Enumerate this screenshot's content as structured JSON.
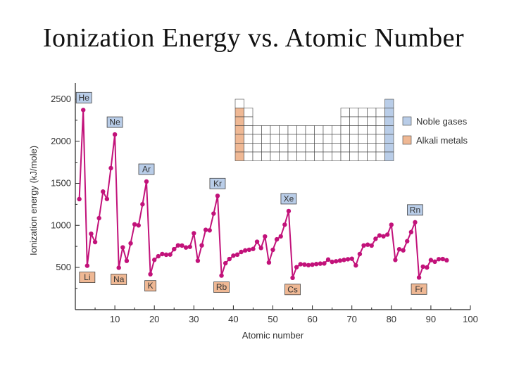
{
  "slide": {
    "title": "Ionization Energy vs. Atomic Number"
  },
  "colors": {
    "line": "#c2127a",
    "noble_fill": "#b9cde8",
    "alkali_fill": "#efb894",
    "label_border": "#444444"
  },
  "chart_data": {
    "type": "line",
    "title": "",
    "xlabel": "Atomic number",
    "ylabel": "Ionization energy (kJ/mole)",
    "xlim": [
      0,
      100
    ],
    "ylim": [
      0,
      2600
    ],
    "xticks": [
      10,
      20,
      30,
      40,
      50,
      60,
      70,
      80,
      90,
      100
    ],
    "yticks": [
      500,
      1000,
      1500,
      2000,
      2500
    ],
    "grid": false,
    "x": [
      1,
      2,
      3,
      4,
      5,
      6,
      7,
      8,
      9,
      10,
      11,
      12,
      13,
      14,
      15,
      16,
      17,
      18,
      19,
      20,
      21,
      22,
      23,
      24,
      25,
      26,
      27,
      28,
      29,
      30,
      31,
      32,
      33,
      34,
      35,
      36,
      37,
      38,
      39,
      40,
      41,
      42,
      43,
      44,
      45,
      46,
      47,
      48,
      49,
      50,
      51,
      52,
      53,
      54,
      55,
      56,
      57,
      58,
      59,
      60,
      61,
      62,
      63,
      64,
      65,
      66,
      67,
      68,
      69,
      70,
      71,
      72,
      73,
      74,
      75,
      76,
      77,
      78,
      79,
      80,
      81,
      82,
      83,
      84,
      85,
      86,
      87,
      88,
      89,
      90,
      91,
      92,
      93,
      94
    ],
    "y": [
      1312,
      2372,
      520,
      900,
      801,
      1086,
      1402,
      1314,
      1681,
      2081,
      496,
      738,
      578,
      787,
      1012,
      1000,
      1251,
      1521,
      419,
      590,
      633,
      659,
      651,
      653,
      717,
      762,
      760,
      737,
      745,
      906,
      579,
      762,
      947,
      941,
      1140,
      1351,
      403,
      550,
      600,
      640,
      652,
      684,
      702,
      710,
      720,
      805,
      731,
      868,
      558,
      709,
      834,
      869,
      1008,
      1170,
      376,
      503,
      538,
      534,
      527,
      533,
      540,
      545,
      547,
      593,
      566,
      573,
      581,
      589,
      597,
      603,
      524,
      659,
      761,
      770,
      760,
      840,
      880,
      870,
      890,
      1007,
      589,
      716,
      703,
      812,
      920,
      1037,
      380,
      509,
      499,
      587,
      568,
      598,
      600,
      585
    ],
    "annotations": [
      {
        "text": "He",
        "x": 2,
        "group": "noble",
        "side": "above"
      },
      {
        "text": "Ne",
        "x": 10,
        "group": "noble",
        "side": "above"
      },
      {
        "text": "Ar",
        "x": 18,
        "group": "noble",
        "side": "above"
      },
      {
        "text": "Kr",
        "x": 36,
        "group": "noble",
        "side": "above"
      },
      {
        "text": "Xe",
        "x": 54,
        "group": "noble",
        "side": "above"
      },
      {
        "text": "Rn",
        "x": 86,
        "group": "noble",
        "side": "above"
      },
      {
        "text": "Li",
        "x": 3,
        "group": "alkali",
        "side": "below"
      },
      {
        "text": "Na",
        "x": 11,
        "group": "alkali",
        "side": "below"
      },
      {
        "text": "K",
        "x": 19,
        "group": "alkali",
        "side": "below"
      },
      {
        "text": "Rb",
        "x": 37,
        "group": "alkali",
        "side": "below"
      },
      {
        "text": "Cs",
        "x": 55,
        "group": "alkali",
        "side": "below"
      },
      {
        "text": "Fr",
        "x": 87,
        "group": "alkali",
        "side": "below"
      }
    ],
    "legend": {
      "placement": "top-right",
      "items": [
        {
          "label": "Noble gases",
          "group": "noble"
        },
        {
          "label": "Alkali metals",
          "group": "alkali"
        }
      ]
    }
  }
}
